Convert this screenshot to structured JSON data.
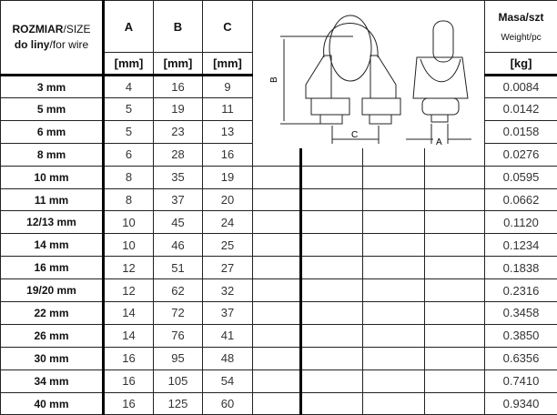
{
  "header": {
    "size_title_bold": "ROZMIAR",
    "size_title_rest": "/SIZE",
    "size_sub_bold": "do liny",
    "size_sub_rest": "/for wire",
    "col_a": "A",
    "col_b": "B",
    "col_c": "C",
    "unit_mm": "[mm]",
    "weight_title": "Masa/szt",
    "weight_sub": "Weight/pc",
    "weight_unit": "[kg]"
  },
  "diagram": {
    "label_a": "A",
    "label_b": "B",
    "label_c": "C"
  },
  "rows": [
    {
      "size": "3 mm",
      "a": "4",
      "b": "16",
      "c": "9",
      "w": "0.0084"
    },
    {
      "size": "5 mm",
      "a": "5",
      "b": "19",
      "c": "11",
      "w": "0.0142"
    },
    {
      "size": "6 mm",
      "a": "5",
      "b": "23",
      "c": "13",
      "w": "0.0158"
    },
    {
      "size": "8 mm",
      "a": "6",
      "b": "28",
      "c": "16",
      "w": "0.0276"
    },
    {
      "size": "10 mm",
      "a": "8",
      "b": "35",
      "c": "19",
      "w": "0.0595"
    },
    {
      "size": "11 mm",
      "a": "8",
      "b": "37",
      "c": "20",
      "w": "0.0662"
    },
    {
      "size": "12/13 mm",
      "a": "10",
      "b": "45",
      "c": "24",
      "w": "0.1120"
    },
    {
      "size": "14 mm",
      "a": "10",
      "b": "46",
      "c": "25",
      "w": "0.1234"
    },
    {
      "size": "16 mm",
      "a": "12",
      "b": "51",
      "c": "27",
      "w": "0.1838"
    },
    {
      "size": "19/20 mm",
      "a": "12",
      "b": "62",
      "c": "32",
      "w": "0.2316"
    },
    {
      "size": "22 mm",
      "a": "14",
      "b": "72",
      "c": "37",
      "w": "0.3458"
    },
    {
      "size": "26 mm",
      "a": "14",
      "b": "76",
      "c": "41",
      "w": "0.3850"
    },
    {
      "size": "30 mm",
      "a": "16",
      "b": "95",
      "c": "48",
      "w": "0.6356"
    },
    {
      "size": "34 mm",
      "a": "16",
      "b": "105",
      "c": "54",
      "w": "0.7410"
    },
    {
      "size": "40 mm",
      "a": "16",
      "b": "125",
      "c": "60",
      "w": "0.9340"
    }
  ]
}
